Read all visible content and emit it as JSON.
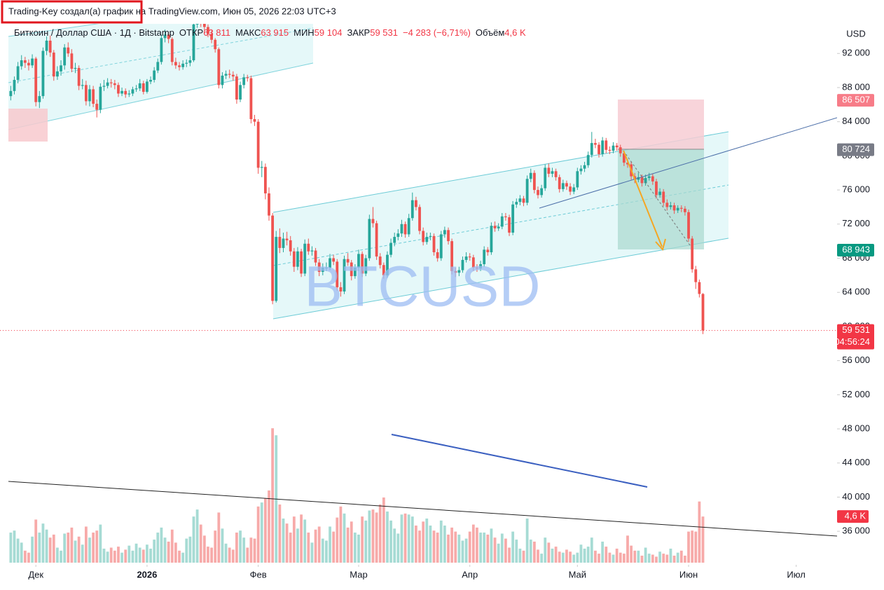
{
  "chart_data": {
    "type": "candlestick",
    "attribution": "Trading-Key создал(а) график на TradingView.com, Июн 05, 2026 22:03 UTC+3",
    "legend": {
      "symbol": "Биткоин / Доллар США · 1Д · Bitstamp",
      "fields": [
        {
          "name": "ОТКР",
          "text": "63 811"
        },
        {
          "name": "МАКС",
          "text": "63 915"
        },
        {
          "name": "МИН",
          "text": "59 104"
        },
        {
          "name": "ЗАКР",
          "text": "59 531"
        }
      ],
      "change": "−4 283 (−6,71%)",
      "volume_name": "Объём",
      "volume_text": "4,6 K"
    },
    "watermark": "BTCUSD",
    "currency": "USD",
    "up_color": "#26a69a",
    "down_color": "#ef5350",
    "volume_up_color": "#a6dbd4",
    "volume_down_color": "#f7aaa9",
    "xlim": [
      -3,
      230.4
    ],
    "ylim": [
      30100,
      95800
    ],
    "volume_ylim": [
      0,
      54
    ],
    "xticks": [
      {
        "value": 7,
        "label": "Дек"
      },
      {
        "value": 38,
        "label": "2026"
      },
      {
        "value": 69,
        "label": "Фев"
      },
      {
        "value": 97,
        "label": "Мар"
      },
      {
        "value": 128,
        "label": "Апр"
      },
      {
        "value": 158,
        "label": "Май"
      },
      {
        "value": 189,
        "label": "Июн"
      },
      {
        "value": 219,
        "label": "Июл"
      }
    ],
    "yticks": [
      {
        "value": 92000,
        "label": "92 000"
      },
      {
        "value": 88000,
        "label": "88 000"
      },
      {
        "value": 84000,
        "label": "84 000"
      },
      {
        "value": 80000,
        "label": "80 000"
      },
      {
        "value": 76000,
        "label": "76 000"
      },
      {
        "value": 72000,
        "label": "72 000"
      },
      {
        "value": 68000,
        "label": "68 000"
      },
      {
        "value": 64000,
        "label": "64 000"
      },
      {
        "value": 60000,
        "label": "60 000"
      },
      {
        "value": 56000,
        "label": "56 000"
      },
      {
        "value": 52000,
        "label": "52 000"
      },
      {
        "value": 48000,
        "label": "48 000"
      },
      {
        "value": 44000,
        "label": "44 000"
      },
      {
        "value": 40000,
        "label": "40 000"
      },
      {
        "value": 36000,
        "label": "36 000"
      }
    ],
    "price_labels": [
      {
        "value": 86507,
        "label": "86 507",
        "color": "#f77c88"
      },
      {
        "value": 80724,
        "label": "80 724",
        "color": "#787b86"
      },
      {
        "value": 68943,
        "label": "68 943",
        "color": "#089981"
      },
      {
        "value": 59531,
        "label": "59 531",
        "sublabel": "04:56:24",
        "color": "#f23645"
      }
    ],
    "volume_label": {
      "value": 4.6,
      "label": "4,6 K",
      "color": "#f23645"
    },
    "candles": [
      [
        87000,
        88200,
        86500,
        87600
      ],
      [
        87600,
        89300,
        87200,
        88900
      ],
      [
        88900,
        91000,
        88500,
        90500
      ],
      [
        90500,
        91800,
        90100,
        91200
      ],
      [
        91200,
        91600,
        90300,
        90900
      ],
      [
        90900,
        91300,
        90000,
        90600
      ],
      [
        90600,
        91900,
        90300,
        91400
      ],
      [
        91400,
        91600,
        85800,
        86300
      ],
      [
        86300,
        87600,
        85600,
        87000
      ],
      [
        87000,
        92700,
        86700,
        92300
      ],
      [
        92300,
        94000,
        91800,
        93500
      ],
      [
        93500,
        94100,
        91600,
        92100
      ],
      [
        92100,
        92400,
        88800,
        89300
      ],
      [
        89300,
        90500,
        88900,
        89900
      ],
      [
        89900,
        91200,
        89400,
        90600
      ],
      [
        90600,
        93100,
        90100,
        92700
      ],
      [
        92700,
        93300,
        91600,
        92000
      ],
      [
        92000,
        92500,
        89800,
        90200
      ],
      [
        90200,
        90900,
        89700,
        90300
      ],
      [
        90300,
        90600,
        87700,
        88200
      ],
      [
        88200,
        89000,
        87800,
        88300
      ],
      [
        88300,
        88800,
        85900,
        86400
      ],
      [
        86400,
        88300,
        85800,
        87800
      ],
      [
        87800,
        88200,
        85700,
        86100
      ],
      [
        86100,
        86600,
        84500,
        85400
      ],
      [
        85400,
        88500,
        85000,
        88100
      ],
      [
        88100,
        88900,
        87600,
        88200
      ],
      [
        88200,
        89100,
        87900,
        88600
      ],
      [
        88600,
        89000,
        88000,
        88500
      ],
      [
        88500,
        88900,
        87800,
        88300
      ],
      [
        88300,
        88600,
        86900,
        87300
      ],
      [
        87300,
        88000,
        87000,
        87600
      ],
      [
        87600,
        87900,
        86800,
        87200
      ],
      [
        87200,
        87700,
        86900,
        87300
      ],
      [
        87300,
        88100,
        87000,
        87800
      ],
      [
        87800,
        88300,
        87500,
        87900
      ],
      [
        87900,
        89000,
        87600,
        88500
      ],
      [
        88500,
        88800,
        87200,
        87500
      ],
      [
        87500,
        89000,
        87300,
        88700
      ],
      [
        88700,
        89300,
        88400,
        88900
      ],
      [
        88900,
        90400,
        88600,
        90000
      ],
      [
        90000,
        91400,
        89700,
        91000
      ],
      [
        91000,
        94200,
        90700,
        93800
      ],
      [
        93800,
        94800,
        93300,
        94200
      ],
      [
        94200,
        94500,
        93200,
        93700
      ],
      [
        93700,
        93900,
        90600,
        91000
      ],
      [
        91000,
        91500,
        90200,
        90600
      ],
      [
        90600,
        91000,
        90000,
        90400
      ],
      [
        90400,
        91200,
        90100,
        90800
      ],
      [
        90800,
        91300,
        90400,
        90900
      ],
      [
        90900,
        91700,
        90500,
        91200
      ],
      [
        91200,
        95700,
        91000,
        95400
      ],
      [
        95400,
        97300,
        95000,
        96900
      ],
      [
        96900,
        97100,
        95100,
        95500
      ],
      [
        95500,
        95900,
        94700,
        95100
      ],
      [
        95100,
        95400,
        93900,
        94300
      ],
      [
        94300,
        94700,
        93200,
        93600
      ],
      [
        93600,
        93800,
        92100,
        92500
      ],
      [
        92500,
        92700,
        87900,
        88300
      ],
      [
        88300,
        89800,
        87900,
        89400
      ],
      [
        89400,
        90000,
        89000,
        89600
      ],
      [
        89600,
        90100,
        89100,
        89500
      ],
      [
        89500,
        89900,
        88800,
        89300
      ],
      [
        89300,
        89600,
        86100,
        86600
      ],
      [
        86600,
        88700,
        86300,
        88300
      ],
      [
        88300,
        89600,
        87900,
        89200
      ],
      [
        89200,
        89500,
        88700,
        89100
      ],
      [
        89100,
        89400,
        83800,
        84300
      ],
      [
        84300,
        84800,
        83500,
        84000
      ],
      [
        84000,
        84300,
        77900,
        78600
      ],
      [
        78600,
        79400,
        77500,
        78700
      ],
      [
        78700,
        79100,
        74900,
        75600
      ],
      [
        75600,
        76300,
        72400,
        73000
      ],
      [
        73000,
        73300,
        62600,
        63000
      ],
      [
        63000,
        71200,
        62800,
        70500
      ],
      [
        70500,
        71500,
        68600,
        69200
      ],
      [
        69200,
        71000,
        68700,
        70300
      ],
      [
        70300,
        71100,
        69500,
        70100
      ],
      [
        70100,
        70600,
        68300,
        68800
      ],
      [
        68800,
        69200,
        66400,
        67000
      ],
      [
        67000,
        69300,
        66600,
        68800
      ],
      [
        68800,
        69100,
        65800,
        66200
      ],
      [
        66200,
        70200,
        65900,
        69700
      ],
      [
        69700,
        70300,
        68400,
        68800
      ],
      [
        68800,
        69400,
        68300,
        68900
      ],
      [
        68900,
        69200,
        67100,
        67500
      ],
      [
        67500,
        67900,
        65900,
        66400
      ],
      [
        66400,
        67400,
        66000,
        66900
      ],
      [
        66900,
        67500,
        66500,
        66900
      ],
      [
        66900,
        68500,
        66600,
        68000
      ],
      [
        68000,
        68400,
        67200,
        67600
      ],
      [
        67600,
        67900,
        64200,
        64600
      ],
      [
        64600,
        65200,
        63500,
        64100
      ],
      [
        64100,
        68300,
        63800,
        67900
      ],
      [
        67900,
        68600,
        67100,
        67500
      ],
      [
        67500,
        67800,
        65400,
        65900
      ],
      [
        65900,
        67300,
        65600,
        66900
      ],
      [
        66900,
        69000,
        66500,
        68500
      ],
      [
        68500,
        68800,
        65800,
        66200
      ],
      [
        66200,
        68400,
        65900,
        68000
      ],
      [
        68000,
        73100,
        67700,
        72600
      ],
      [
        72600,
        74000,
        71600,
        72100
      ],
      [
        72100,
        72400,
        67800,
        68200
      ],
      [
        68200,
        68600,
        66800,
        67200
      ],
      [
        67200,
        67500,
        65600,
        66000
      ],
      [
        66000,
        68800,
        65700,
        68400
      ],
      [
        68400,
        70300,
        68100,
        69800
      ],
      [
        69800,
        71000,
        69400,
        70500
      ],
      [
        70500,
        71400,
        70100,
        70900
      ],
      [
        70900,
        72500,
        70500,
        72000
      ],
      [
        72000,
        72300,
        70400,
        70800
      ],
      [
        70800,
        73200,
        70500,
        72700
      ],
      [
        72700,
        75700,
        72400,
        74800
      ],
      [
        74800,
        75200,
        73600,
        74000
      ],
      [
        74000,
        74300,
        70800,
        71200
      ],
      [
        71200,
        71600,
        69500,
        69900
      ],
      [
        69900,
        71000,
        69600,
        70500
      ],
      [
        70500,
        71000,
        70100,
        70600
      ],
      [
        70600,
        70900,
        68300,
        68700
      ],
      [
        68700,
        69100,
        67600,
        68000
      ],
      [
        68000,
        71200,
        67700,
        70800
      ],
      [
        70800,
        71700,
        70400,
        71300
      ],
      [
        71300,
        71600,
        69600,
        70000
      ],
      [
        70000,
        70300,
        66100,
        66500
      ],
      [
        66500,
        66900,
        65800,
        66300
      ],
      [
        66300,
        67000,
        65900,
        66600
      ],
      [
        66600,
        68200,
        66300,
        67800
      ],
      [
        67800,
        68700,
        67500,
        68200
      ],
      [
        68200,
        68600,
        67700,
        68100
      ],
      [
        68100,
        68400,
        66500,
        66900
      ],
      [
        66900,
        67300,
        66400,
        66800
      ],
      [
        66800,
        67700,
        66500,
        67300
      ],
      [
        67300,
        69400,
        67000,
        69000
      ],
      [
        69000,
        69300,
        68300,
        68700
      ],
      [
        68700,
        72200,
        68400,
        71800
      ],
      [
        71800,
        72300,
        71100,
        71500
      ],
      [
        71500,
        72100,
        71200,
        71700
      ],
      [
        71700,
        73300,
        71400,
        72900
      ],
      [
        72900,
        73300,
        72400,
        72800
      ],
      [
        72800,
        73100,
        70600,
        71000
      ],
      [
        71000,
        74700,
        70700,
        74300
      ],
      [
        74300,
        75000,
        73900,
        74600
      ],
      [
        74600,
        75400,
        74200,
        75000
      ],
      [
        75000,
        75300,
        74100,
        74500
      ],
      [
        74500,
        77700,
        74200,
        77300
      ],
      [
        77300,
        78500,
        76900,
        78000
      ],
      [
        78000,
        78300,
        75600,
        76000
      ],
      [
        76000,
        76400,
        75000,
        75400
      ],
      [
        75400,
        76600,
        75100,
        76200
      ],
      [
        76200,
        79000,
        75900,
        78600
      ],
      [
        78600,
        79100,
        77500,
        77900
      ],
      [
        77900,
        78600,
        77500,
        78200
      ],
      [
        78200,
        78500,
        77100,
        77500
      ],
      [
        77500,
        77800,
        75700,
        76100
      ],
      [
        76100,
        77200,
        75800,
        76800
      ],
      [
        76800,
        77100,
        76000,
        76400
      ],
      [
        76400,
        76800,
        75400,
        75800
      ],
      [
        75800,
        76700,
        75500,
        76300
      ],
      [
        76300,
        78600,
        76000,
        78200
      ],
      [
        78200,
        78900,
        77800,
        78500
      ],
      [
        78500,
        79300,
        78100,
        78900
      ],
      [
        78900,
        80500,
        78600,
        80100
      ],
      [
        80100,
        82800,
        79800,
        81500
      ],
      [
        81500,
        82000,
        80900,
        81300
      ],
      [
        81300,
        81600,
        79800,
        80200
      ],
      [
        80200,
        82200,
        79900,
        81800
      ],
      [
        81800,
        82100,
        80300,
        80700
      ],
      [
        80700,
        81100,
        80200,
        80600
      ],
      [
        80600,
        81600,
        80300,
        81200
      ],
      [
        81200,
        81500,
        80600,
        81000
      ],
      [
        81000,
        81300,
        79900,
        80300
      ],
      [
        80300,
        80600,
        78800,
        79200
      ],
      [
        79200,
        79600,
        78600,
        79000
      ],
      [
        79000,
        79300,
        77200,
        77600
      ],
      [
        77600,
        78000,
        76800,
        77200
      ],
      [
        77200,
        78000,
        76900,
        77500
      ],
      [
        77500,
        77800,
        76400,
        76800
      ],
      [
        76800,
        77800,
        76500,
        77400
      ],
      [
        77400,
        78000,
        77100,
        77600
      ],
      [
        77600,
        77900,
        76600,
        77000
      ],
      [
        77000,
        77300,
        75000,
        75400
      ],
      [
        75400,
        76200,
        75100,
        75800
      ],
      [
        75800,
        76100,
        74100,
        74500
      ],
      [
        74500,
        74900,
        73600,
        74000
      ],
      [
        74000,
        74600,
        73700,
        74200
      ],
      [
        74200,
        74500,
        73200,
        73600
      ],
      [
        73600,
        74200,
        73300,
        73900
      ],
      [
        73900,
        74200,
        73400,
        73800
      ],
      [
        73800,
        74100,
        73000,
        73400
      ],
      [
        73400,
        73700,
        69900,
        70300
      ],
      [
        70300,
        70600,
        66300,
        66700
      ],
      [
        66700,
        67100,
        64400,
        65200
      ],
      [
        65200,
        65500,
        63400,
        63814
      ],
      [
        63811,
        63915,
        59104,
        59531
      ]
    ],
    "volumes": [
      3.0,
      3.2,
      2.4,
      2.0,
      1.2,
      1.0,
      2.6,
      4.3,
      3.0,
      3.9,
      3.3,
      2.5,
      2.8,
      1.5,
      1.2,
      2.9,
      3.0,
      3.5,
      2.2,
      2.6,
      1.8,
      3.6,
      2.5,
      3.0,
      3.2,
      3.8,
      1.4,
      1.1,
      1.5,
      1.2,
      1.6,
      1.0,
      1.3,
      1.7,
      1.2,
      1.9,
      1.5,
      1.3,
      1.8,
      1.4,
      2.3,
      3.0,
      3.5,
      2.5,
      2.1,
      3.3,
      2.0,
      1.2,
      1.0,
      2.4,
      2.6,
      4.6,
      5.3,
      3.8,
      2.7,
      1.6,
      1.5,
      3.2,
      5.0,
      3.4,
      1.9,
      1.5,
      1.3,
      3.0,
      3.2,
      2.5,
      1.5,
      2.5,
      2.4,
      5.6,
      6.0,
      6.4,
      7.2,
      13.4,
      12.7,
      5.8,
      4.4,
      3.9,
      3.0,
      4.6,
      3.4,
      4.8,
      4.3,
      3.0,
      2.0,
      3.3,
      3.6,
      2.4,
      2.2,
      3.6,
      3.1,
      4.5,
      5.6,
      4.9,
      3.5,
      4.1,
      3.0,
      2.8,
      4.6,
      4.2,
      5.2,
      5.3,
      5.0,
      5.8,
      6.5,
      5.1,
      4.2,
      3.4,
      2.9,
      4.8,
      4.9,
      4.8,
      4.6,
      3.7,
      3.2,
      4.1,
      4.4,
      3.7,
      3.2,
      3.0,
      4.2,
      3.7,
      2.8,
      3.5,
      3.1,
      2.8,
      2.2,
      2.4,
      3.1,
      3.8,
      3.5,
      3.0,
      3.0,
      2.8,
      3.4,
      2.5,
      1.9,
      2.9,
      2.4,
      1.5,
      3.1,
      2.3,
      1.4,
      1.2,
      4.4,
      2.3,
      2.1,
      1.3,
      0.9,
      2.5,
      2.0,
      1.4,
      1.6,
      1.1,
      1.0,
      1.3,
      1.1,
      0.8,
      1.0,
      1.8,
      1.4,
      1.6,
      2.5,
      1.2,
      0.9,
      2.1,
      1.6,
      1.0,
      0.8,
      1.4,
      1.0,
      0.9,
      2.7,
      1.7,
      1.2,
      1.2,
      0.7,
      1.5,
      0.9,
      0.8,
      0.6,
      1.1,
      0.9,
      0.8,
      1.4,
      0.7,
      1.0,
      1.2,
      0.7,
      3.1,
      3.2,
      3.1,
      6.1,
      4.6
    ]
  }
}
